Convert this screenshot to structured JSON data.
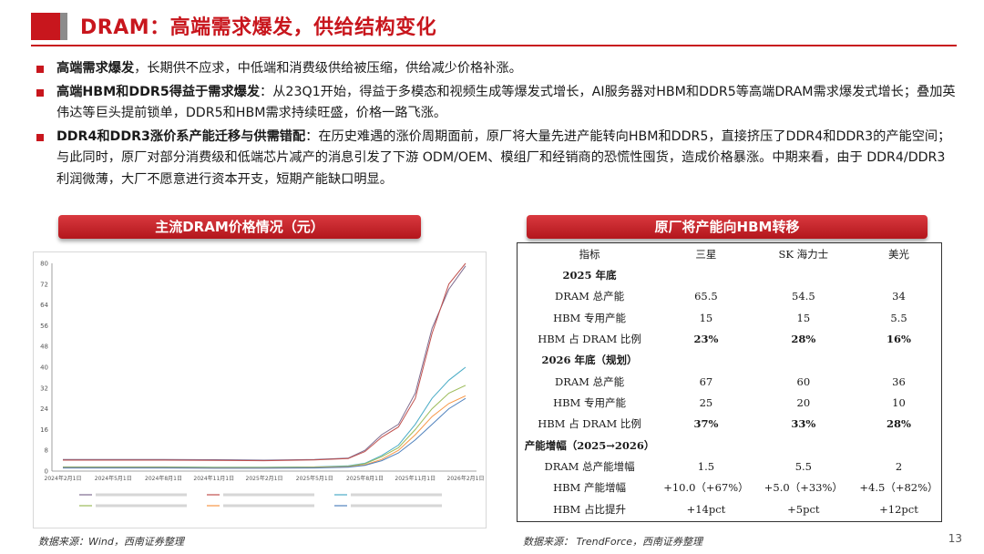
{
  "header": {
    "title": "DRAM：高端需求爆发，供给结构变化"
  },
  "bullets": [
    {
      "bold": "高端需求爆发",
      "text": "，长期供不应求，中低端和消费级供给被压缩，供给减少价格补涨。"
    },
    {
      "bold": "高端HBM和DDR5得益于需求爆发",
      "text": "：从23Q1开始，得益于多模态和视频生成等爆发式增长，AI服务器对HBM和DDR5等高端DRAM需求爆发式增长；叠加英伟达等巨头提前锁单，DDR5和HBM需求持续旺盛，价格一路飞涨。"
    },
    {
      "bold": "DDR4和DDR3涨价系产能迁移与供需错配",
      "text": "：在历史难遇的涨价周期面前，原厂将大量先进产能转向HBM和DDR5，直接挤压了DDR4和DDR3的产能空间；与此同时，原厂对部分消费级和低端芯片减产的消息引发了下游 ODM/OEM、模组厂和经销商的恐慌性囤货，造成价格暴涨。中期来看，由于 DDR4/DDR3 利润微薄，大厂不愿意进行资本开支，短期产能缺口明显。"
    }
  ],
  "left_panel": {
    "title": "主流DRAM价格情况（元）",
    "source": "数据来源：Wind，西南证券整理"
  },
  "right_panel": {
    "title": "原厂将产能向HBM转移",
    "source": "数据来源：  TrendForce，西南证券整理",
    "header": [
      "指标",
      "三星",
      "SK 海力士",
      "美光"
    ],
    "rows": [
      [
        "2025 年底",
        "",
        "",
        ""
      ],
      [
        "DRAM 总产能",
        "65.5",
        "54.5",
        "34"
      ],
      [
        "HBM 专用产能",
        "15",
        "15",
        "5.5"
      ],
      [
        "HBM 占 DRAM 比例",
        "23%",
        "28%",
        "16%"
      ],
      [
        "2026 年底（规划）",
        "",
        "",
        ""
      ],
      [
        "DRAM 总产能",
        "67",
        "60",
        "36"
      ],
      [
        "HBM 专用产能",
        "25",
        "20",
        "10"
      ],
      [
        "HBM 占 DRAM 比例",
        "37%",
        "33%",
        "28%"
      ],
      [
        "产能增幅（2025→2026）",
        "",
        "",
        ""
      ],
      [
        "DRAM 总产能增幅",
        "1.5",
        "5.5",
        "2"
      ],
      [
        "HBM 产能增幅",
        "+10.0（+67%）",
        "+5.0（+33%）",
        "+4.5（+82%）"
      ],
      [
        "HBM 占比提升",
        "+14pct",
        "+5pct",
        "+12pct"
      ]
    ]
  },
  "page_number": "13",
  "colors": {
    "accent": "#c8161d"
  },
  "chart_data": {
    "type": "line",
    "title": "",
    "xlabel": "",
    "ylabel": "",
    "ylim": [
      0,
      80
    ],
    "yticks": [
      "0",
      "8",
      "16",
      "24",
      "32",
      "40",
      "48",
      "56",
      "64",
      "72",
      "80"
    ],
    "xticks": [
      "2024年2月1日",
      "2024年5月1日",
      "2024年8月1日",
      "2024年11月1日",
      "2025年2月1日",
      "2025年5月1日",
      "2025年8月1日",
      "2025年11月1日",
      "2026年2月1日"
    ],
    "x": [
      "2024-02",
      "2024-05",
      "2024-08",
      "2024-11",
      "2025-02",
      "2025-05",
      "2025-07",
      "2025-08",
      "2025-09",
      "2025-10",
      "2025-11",
      "2025-12",
      "2026-01",
      "2026-02"
    ],
    "series": [
      {
        "color": "#7e6b8f",
        "values": [
          4.5,
          4.5,
          4.5,
          4.4,
          4.2,
          4.5,
          5,
          8,
          14,
          18,
          30,
          55,
          70,
          79
        ]
      },
      {
        "color": "#c0504d",
        "values": [
          4.2,
          4.2,
          4.2,
          4.1,
          4.0,
          4.3,
          4.8,
          7.5,
          13,
          17,
          28,
          53,
          72,
          80
        ]
      },
      {
        "color": "#4bacc6",
        "values": [
          1.6,
          1.6,
          1.6,
          1.5,
          1.5,
          1.6,
          2,
          3,
          6,
          10,
          18,
          28,
          35,
          40
        ]
      },
      {
        "color": "#9bbb59",
        "values": [
          1.5,
          1.5,
          1.5,
          1.4,
          1.4,
          1.5,
          1.8,
          2.8,
          5.5,
          9,
          16,
          24,
          30,
          33
        ]
      },
      {
        "color": "#f79646",
        "values": [
          1.3,
          1.3,
          1.3,
          1.2,
          1.2,
          1.3,
          1.6,
          2.4,
          4.5,
          8,
          14,
          21,
          26,
          29
        ]
      },
      {
        "color": "#4f81bd",
        "values": [
          1.2,
          1.2,
          1.2,
          1.1,
          1.1,
          1.2,
          1.5,
          2.2,
          4,
          7,
          12,
          18,
          24,
          28
        ]
      }
    ]
  }
}
